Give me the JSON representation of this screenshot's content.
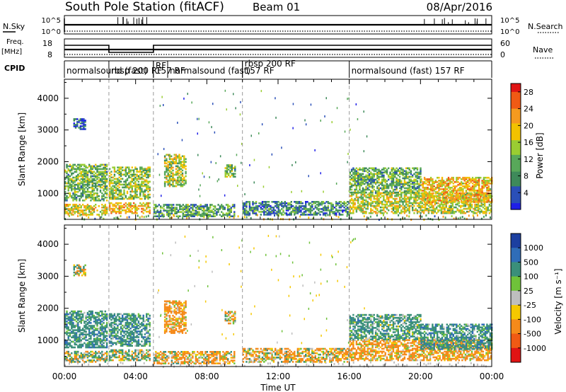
{
  "header": {
    "title": "South Pole Station (fitACF)",
    "beam": "Beam 01",
    "date": "08/Apr/2016"
  },
  "strip": {
    "nsky_label": "N.Sky",
    "nsky_ticks": [
      "10^5",
      "10^0"
    ],
    "nsearch_label": "N.Search",
    "nsearch_ticks": [
      "10^5",
      "10^0"
    ],
    "freq_label": "Freq.",
    "freq_unit": "[MHz]",
    "freq_ticks": [
      "18",
      "8"
    ],
    "nave_label": "Nave",
    "nave_ticks": [
      "60",
      "0"
    ],
    "cpid_label": "CPID"
  },
  "cpid_segments": [
    {
      "start": 0.0,
      "end": 2.5,
      "label": "normalsound (fast)"
    },
    {
      "start": 2.5,
      "end": 5.0,
      "label": "rbsp 200 RF"
    },
    {
      "start": 5.0,
      "end": 5.8,
      "label": "RF"
    },
    {
      "start": 5.0,
      "end": 5.8,
      "label": "157 RF"
    },
    {
      "start": 5.8,
      "end": 10.0,
      "label": "normalsound (fast)"
    },
    {
      "start": 10.0,
      "end": 16.0,
      "label": "rbsp 200 RF"
    },
    {
      "start": 10.0,
      "end": 16.0,
      "label": "157 RF"
    },
    {
      "start": 16.0,
      "end": 24.0,
      "label": "normalsound (fast) 157 RF"
    }
  ],
  "panel_power": {
    "ylabel": "Slant Range [km]",
    "yticks": [
      "1000",
      "2000",
      "3000",
      "4000"
    ],
    "colorbar_label": "Power [dB]",
    "colorbar_ticks": [
      "4",
      "8",
      "12",
      "16",
      "20",
      "24",
      "28"
    ]
  },
  "panel_velocity": {
    "ylabel": "Slant Range [km]",
    "yticks": [
      "1000",
      "2000",
      "3000",
      "4000"
    ],
    "colorbar_label": "Velocity [m s⁻¹]",
    "colorbar_ticks": [
      "1000",
      "500",
      "100",
      "25",
      "-25",
      "-100",
      "-500",
      "-1000"
    ]
  },
  "xaxis": {
    "label": "Time UT",
    "ticks": [
      "00:00",
      "04:00",
      "08:00",
      "12:00",
      "16:00",
      "20:00",
      "00:00"
    ]
  },
  "colors": {
    "power_scale": [
      "#1f1fe8",
      "#2a4fb8",
      "#3e8a5a",
      "#58a85a",
      "#9acd32",
      "#f2c200",
      "#f59a1f",
      "#f05a14",
      "#e01414"
    ],
    "velocity_scale": [
      "#1c3fa0",
      "#2f6db8",
      "#3a8f7a",
      "#6fc23a",
      "#bebebe",
      "#f5c800",
      "#f58a1a",
      "#f05a14",
      "#e01414"
    ]
  },
  "chart_data": [
    {
      "type": "heatmap",
      "quantity": "power",
      "ylabel": "Slant Range [km]",
      "xlabel": "Time UT",
      "xlim": [
        0,
        24
      ],
      "ylim": [
        180,
        4600
      ],
      "colorbar_range": [
        0,
        30
      ],
      "echo_regions": [
        {
          "t0": 0.0,
          "t1": 2.4,
          "r0": 300,
          "r1": 650,
          "level": 18
        },
        {
          "t0": 0.0,
          "t1": 2.4,
          "r0": 750,
          "r1": 1900,
          "level": 12
        },
        {
          "t0": 0.5,
          "t1": 1.2,
          "r0": 3000,
          "r1": 3350,
          "level": 6
        },
        {
          "t0": 2.5,
          "t1": 4.8,
          "r0": 350,
          "r1": 700,
          "level": 20
        },
        {
          "t0": 2.5,
          "t1": 4.8,
          "r0": 800,
          "r1": 1800,
          "level": 14
        },
        {
          "t0": 5.0,
          "t1": 9.5,
          "r0": 250,
          "r1": 650,
          "level": 10
        },
        {
          "t0": 5.6,
          "t1": 6.8,
          "r0": 1200,
          "r1": 2200,
          "level": 15
        },
        {
          "t0": 9.0,
          "t1": 9.6,
          "r0": 1500,
          "r1": 1900,
          "level": 12
        },
        {
          "t0": 10.0,
          "t1": 16.0,
          "r0": 300,
          "r1": 750,
          "level": 8
        },
        {
          "t0": 16.0,
          "t1": 24.0,
          "r0": 350,
          "r1": 1000,
          "level": 16
        },
        {
          "t0": 16.0,
          "t1": 20.0,
          "r0": 1000,
          "r1": 1800,
          "level": 11
        },
        {
          "t0": 20.0,
          "t1": 24.0,
          "r0": 700,
          "r1": 1500,
          "level": 20
        }
      ]
    },
    {
      "type": "heatmap",
      "quantity": "velocity",
      "ylabel": "Slant Range [km]",
      "xlabel": "Time UT",
      "xlim": [
        0,
        24
      ],
      "ylim": [
        180,
        4600
      ],
      "colorbar_range": [
        -1000,
        1000
      ],
      "echo_regions": [
        {
          "t0": 0.0,
          "t1": 2.4,
          "r0": 300,
          "r1": 650,
          "level": 60
        },
        {
          "t0": 0.0,
          "t1": 2.4,
          "r0": 750,
          "r1": 1900,
          "level": 300
        },
        {
          "t0": 0.5,
          "t1": 1.2,
          "r0": 3000,
          "r1": 3350,
          "level": 0
        },
        {
          "t0": 2.5,
          "t1": 4.8,
          "r0": 350,
          "r1": 700,
          "level": 60
        },
        {
          "t0": 2.5,
          "t1": 4.8,
          "r0": 800,
          "r1": 1800,
          "level": 300
        },
        {
          "t0": 5.0,
          "t1": 9.5,
          "r0": 250,
          "r1": 650,
          "level": -150
        },
        {
          "t0": 5.6,
          "t1": 6.8,
          "r0": 1200,
          "r1": 2200,
          "level": -200
        },
        {
          "t0": 9.0,
          "t1": 9.6,
          "r0": 1500,
          "r1": 1900,
          "level": -80
        },
        {
          "t0": 10.0,
          "t1": 16.0,
          "r0": 300,
          "r1": 750,
          "level": -120
        },
        {
          "t0": 16.0,
          "t1": 24.0,
          "r0": 350,
          "r1": 1000,
          "level": -200
        },
        {
          "t0": 16.0,
          "t1": 20.0,
          "r0": 1000,
          "r1": 1800,
          "level": 250
        },
        {
          "t0": 20.0,
          "t1": 24.0,
          "r0": 700,
          "r1": 1500,
          "level": 300
        }
      ]
    }
  ]
}
